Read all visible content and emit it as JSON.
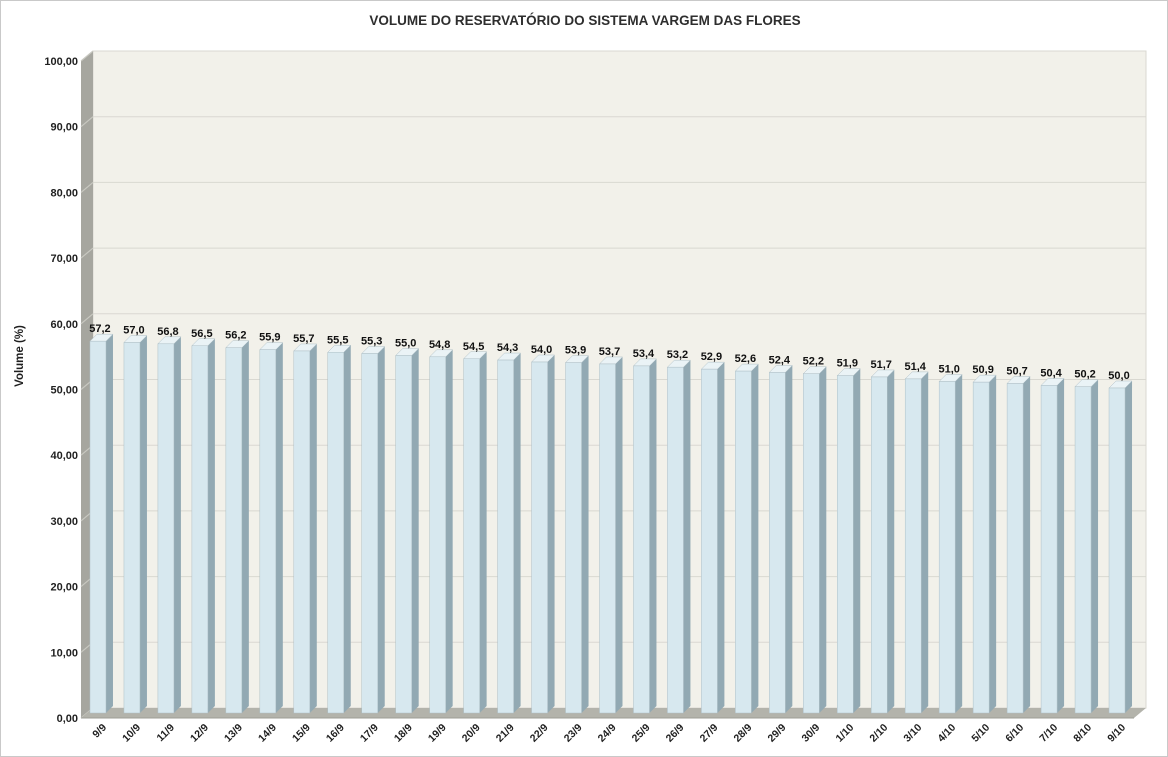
{
  "chart_data": {
    "type": "bar",
    "title": "VOLUME DO RESERVATÓRIO DO SISTEMA VARGEM DAS FLORES",
    "xlabel": "",
    "ylabel": "Volume (%)",
    "ylim": [
      0,
      100
    ],
    "grid": "horizontal",
    "legend": "none",
    "effect": "3d-columns",
    "categories": [
      "9/9",
      "10/9",
      "11/9",
      "12/9",
      "13/9",
      "14/9",
      "15/9",
      "16/9",
      "17/9",
      "18/9",
      "19/9",
      "20/9",
      "21/9",
      "22/9",
      "23/9",
      "24/9",
      "25/9",
      "26/9",
      "27/9",
      "28/9",
      "29/9",
      "30/9",
      "1/10",
      "2/10",
      "3/10",
      "4/10",
      "5/10",
      "6/10",
      "7/10",
      "8/10",
      "9/10"
    ],
    "values": [
      57.2,
      57.0,
      56.8,
      56.5,
      56.2,
      55.9,
      55.7,
      55.5,
      55.3,
      55.0,
      54.8,
      54.5,
      54.3,
      54.0,
      53.9,
      53.7,
      53.4,
      53.2,
      52.9,
      52.6,
      52.4,
      52.2,
      51.9,
      51.7,
      51.4,
      51.0,
      50.9,
      50.7,
      50.4,
      50.2,
      50.0
    ],
    "value_labels": [
      "57,2",
      "57,0",
      "56,8",
      "56,5",
      "56,2",
      "55,9",
      "55,7",
      "55,5",
      "55,3",
      "55,0",
      "54,8",
      "54,5",
      "54,3",
      "54,0",
      "53,9",
      "53,7",
      "53,4",
      "53,2",
      "52,9",
      "52,6",
      "52,4",
      "52,2",
      "51,9",
      "51,7",
      "51,4",
      "51,0",
      "50,9",
      "50,7",
      "50,4",
      "50,2",
      "50,0"
    ],
    "y_tick_values": [
      0,
      10,
      20,
      30,
      40,
      50,
      60,
      70,
      80,
      90,
      100
    ],
    "y_tick_labels": [
      "0,00",
      "10,00",
      "20,00",
      "30,00",
      "40,00",
      "50,00",
      "60,00",
      "70,00",
      "80,00",
      "90,00",
      "100,00"
    ],
    "style": {
      "background": "#ffffff",
      "frame_border": "#c9c9c9",
      "plot_wall": "#f2f1ea",
      "gridline": "#d9d8d1",
      "side_wall": "#a6a69f",
      "side_wall_tick": "#c8c8c1",
      "floor": "#b3b3ab",
      "floor_edge": "#9c9c94",
      "bar_front": "#d7e8ef",
      "bar_top": "#eaf3f6",
      "bar_side": "#92a9b3",
      "bar_stroke": "#aebfc6",
      "text": "#1f1f1f",
      "title_color": "#2e2e2e"
    }
  }
}
